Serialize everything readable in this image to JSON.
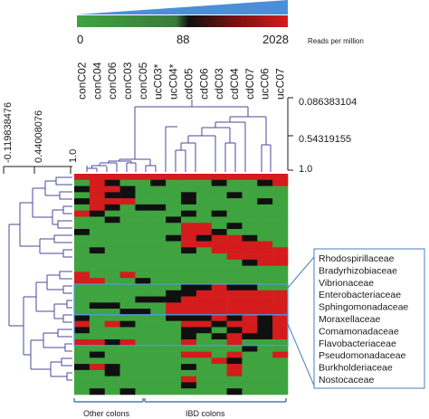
{
  "chart_data": {
    "type": "heatmap",
    "title": "",
    "color_scale": {
      "min_label": "0",
      "mid_label": "88",
      "max_label": "2028",
      "unit_label": "Reads per million",
      "colors": {
        "low": "#3fa33f",
        "mid": "#101010",
        "high": "#d41c1c",
        "ramp": "#4a8fd8"
      }
    },
    "columns": [
      "conC02",
      "conC04",
      "conC06",
      "conC03",
      "conC05",
      "ucC03*",
      "ucC04*",
      "cdC05",
      "cdC06",
      "cdC03",
      "cdC04",
      "cdC07",
      "ucC06",
      "ucC07"
    ],
    "column_tree_heights": [
      "0.086383104",
      "0.54319155",
      "1.0"
    ],
    "row_tree_heights": [
      "-0.119838476",
      "0.44008076",
      "1.0"
    ],
    "families": [
      "Rhodospirillaceae",
      "Bradyrhizobiaceae",
      "Vibrionaceae",
      "Enterobacteriaceae",
      "Sphingomonadaceae",
      "Moraxellaceae",
      "Comamonadaceae",
      "Flavobacteriaceae",
      "Pseudomonadaceae",
      "Burkholderiaceae",
      "Nostocaceae"
    ],
    "groups": [
      {
        "label": "Other colons",
        "columns": [
          "conC02",
          "conC04",
          "conC06",
          "conC03",
          "conC05",
          "ucC03*"
        ]
      },
      {
        "label": "IBD colons",
        "columns": [
          "ucC04*",
          "cdC05",
          "cdC06",
          "cdC03",
          "cdC04",
          "cdC07",
          "ucC06",
          "ucC07"
        ]
      }
    ],
    "highlight_rows": [
      18,
      23
    ],
    "rows": [
      [
        2,
        2,
        2,
        2,
        2,
        2,
        2,
        2,
        2,
        2,
        2,
        2,
        2,
        2
      ],
      [
        0,
        2,
        1,
        0,
        0,
        1,
        0,
        0,
        0,
        1,
        0,
        0,
        1,
        2
      ],
      [
        1,
        2,
        2,
        1,
        0,
        0,
        0,
        0,
        0,
        0,
        0,
        0,
        0,
        0
      ],
      [
        0,
        2,
        1,
        1,
        0,
        0,
        0,
        1,
        0,
        0,
        1,
        0,
        0,
        0
      ],
      [
        1,
        2,
        2,
        2,
        0,
        0,
        0,
        1,
        0,
        0,
        0,
        0,
        1,
        0
      ],
      [
        0,
        2,
        1,
        0,
        1,
        1,
        0,
        0,
        0,
        0,
        0,
        0,
        0,
        0
      ],
      [
        2,
        1,
        0,
        0,
        0,
        0,
        0,
        1,
        0,
        1,
        0,
        0,
        0,
        0
      ],
      [
        0,
        0,
        1,
        0,
        0,
        0,
        1,
        0,
        0,
        0,
        0,
        0,
        0,
        0
      ],
      [
        0,
        0,
        0,
        0,
        0,
        0,
        0,
        2,
        2,
        0,
        1,
        0,
        0,
        0
      ],
      [
        1,
        0,
        0,
        0,
        0,
        0,
        0,
        2,
        2,
        1,
        0,
        0,
        0,
        0
      ],
      [
        0,
        0,
        0,
        0,
        0,
        0,
        1,
        2,
        1,
        2,
        2,
        1,
        0,
        0
      ],
      [
        0,
        0,
        0,
        0,
        0,
        0,
        0,
        2,
        2,
        2,
        2,
        2,
        2,
        0
      ],
      [
        0,
        1,
        0,
        0,
        0,
        0,
        0,
        1,
        0,
        2,
        2,
        2,
        2,
        2
      ],
      [
        0,
        0,
        0,
        0,
        0,
        0,
        0,
        0,
        0,
        0,
        2,
        2,
        2,
        2
      ],
      [
        0,
        0,
        0,
        0,
        0,
        0,
        0,
        0,
        0,
        0,
        0,
        1,
        2,
        2
      ],
      [
        0,
        0,
        0,
        0,
        0,
        0,
        0,
        0,
        0,
        0,
        0,
        0,
        0,
        0
      ],
      [
        2,
        0,
        0,
        2,
        0,
        0,
        0,
        0,
        0,
        0,
        0,
        0,
        0,
        0
      ],
      [
        2,
        2,
        0,
        0,
        1,
        0,
        0,
        0,
        0,
        0,
        0,
        0,
        0,
        0
      ],
      [
        0,
        0,
        0,
        0,
        0,
        0,
        0,
        1,
        1,
        2,
        1,
        1,
        0,
        0
      ],
      [
        0,
        0,
        0,
        0,
        0,
        0,
        1,
        1,
        2,
        2,
        2,
        2,
        2,
        2
      ],
      [
        0,
        0,
        0,
        0,
        1,
        1,
        1,
        2,
        2,
        2,
        2,
        2,
        2,
        2
      ],
      [
        0,
        1,
        1,
        0,
        0,
        0,
        2,
        2,
        2,
        2,
        2,
        2,
        2,
        2
      ],
      [
        0,
        0,
        0,
        1,
        1,
        0,
        2,
        2,
        2,
        2,
        2,
        2,
        2,
        2
      ],
      [
        1,
        0,
        0,
        0,
        0,
        0,
        1,
        1,
        1,
        2,
        1,
        2,
        1,
        2
      ],
      [
        2,
        0,
        2,
        1,
        0,
        0,
        0,
        2,
        2,
        1,
        2,
        2,
        1,
        2
      ],
      [
        1,
        0,
        0,
        0,
        0,
        0,
        0,
        1,
        1,
        0,
        1,
        2,
        1,
        2
      ],
      [
        0,
        0,
        0,
        0,
        0,
        0,
        0,
        1,
        0,
        1,
        2,
        1,
        1,
        2
      ],
      [
        2,
        2,
        1,
        2,
        0,
        0,
        0,
        2,
        0,
        0,
        2,
        0,
        0,
        0
      ],
      [
        0,
        0,
        0,
        0,
        0,
        0,
        0,
        0,
        0,
        0,
        0,
        1,
        0,
        0
      ],
      [
        0,
        1,
        0,
        0,
        0,
        0,
        0,
        2,
        2,
        0,
        2,
        0,
        0,
        2
      ],
      [
        0,
        0,
        0,
        0,
        0,
        0,
        0,
        0,
        0,
        2,
        1,
        0,
        0,
        0
      ],
      [
        1,
        2,
        1,
        0,
        0,
        0,
        0,
        1,
        0,
        0,
        2,
        0,
        0,
        0
      ],
      [
        0,
        0,
        1,
        0,
        0,
        0,
        0,
        0,
        0,
        0,
        2,
        0,
        0,
        0
      ],
      [
        0,
        0,
        0,
        0,
        0,
        0,
        0,
        2,
        0,
        0,
        0,
        0,
        0,
        0
      ],
      [
        0,
        0,
        0,
        0,
        0,
        0,
        0,
        1,
        0,
        0,
        0,
        0,
        0,
        0
      ],
      [
        0,
        1,
        0,
        1,
        0,
        0,
        0,
        0,
        0,
        0,
        1,
        0,
        0,
        0
      ]
    ]
  }
}
